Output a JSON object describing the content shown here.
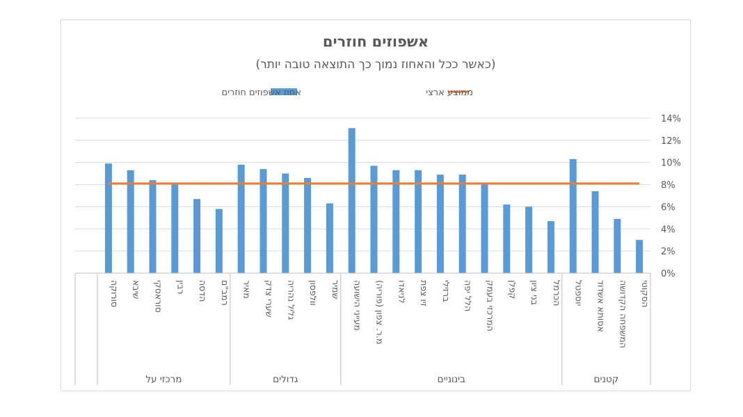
{
  "chart_data": {
    "type": "bar",
    "title": "אשפוזים חוזרים",
    "subtitle": "(כאשר ככל והאחוז נמוך כך התוצאה טובה יותר)",
    "legend": {
      "placement": "top",
      "items": [
        {
          "label": "ממוצע ארצי",
          "kind": "line",
          "color": "#ed7d31"
        },
        {
          "label": "אחוז אשפוזים חוזרים",
          "kind": "bar",
          "color": "#5b9bd5"
        }
      ]
    },
    "y_axis": {
      "position": "right",
      "ylim": [
        0,
        14
      ],
      "ticks": [
        "0%",
        "2%",
        "4%",
        "6%",
        "8%",
        "10%",
        "12%",
        "14%"
      ],
      "gridlines": true
    },
    "categories": [
      "סורוקה",
      "שיבא",
      "סוראסקי",
      "רבין",
      "הדסה",
      "רמב\"ם",
      "מאיר",
      "שערי צדק",
      "גליל נהריה",
      "וולפסון",
      "שמיר",
      "מעייני הישועה",
      "מ.ר. צפון (פוריה)",
      "לניאדו",
      "זיו צפת",
      "ברזילי",
      "הלל יפה",
      "המרכזי בעמק",
      "קפלן",
      "בני ציון",
      "הכרמל",
      "יוספטל",
      "אסותא אשדוד",
      "המשפחה הקדושה",
      "הסקוטי"
    ],
    "groups": [
      {
        "label": "מרכזי על",
        "count": 6
      },
      {
        "label": "גדולים",
        "count": 5
      },
      {
        "label": "בינוניים",
        "count": 10
      },
      {
        "label": "קטנים",
        "count": 4
      }
    ],
    "series": [
      {
        "name": "אחוז אשפוזים חוזרים",
        "type": "bar",
        "color": "#5b9bd5",
        "values": [
          9.9,
          9.3,
          8.4,
          8.0,
          6.7,
          5.8,
          9.8,
          9.4,
          9.0,
          8.6,
          6.3,
          13.1,
          9.7,
          9.3,
          9.3,
          8.9,
          8.9,
          8.0,
          6.2,
          6.0,
          4.7,
          10.3,
          7.4,
          4.9,
          3.0
        ]
      },
      {
        "name": "ממוצע ארצי",
        "type": "line",
        "color": "#ed7d31",
        "value": 8.1
      }
    ]
  }
}
